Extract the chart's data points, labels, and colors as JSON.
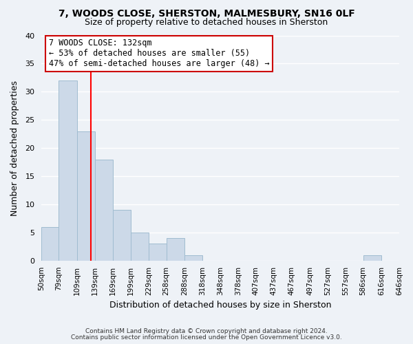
{
  "title": "7, WOODS CLOSE, SHERSTON, MALMESBURY, SN16 0LF",
  "subtitle": "Size of property relative to detached houses in Sherston",
  "xlabel": "Distribution of detached houses by size in Sherston",
  "ylabel": "Number of detached properties",
  "bar_color": "#ccd9e8",
  "bar_edge_color": "#a0bcd0",
  "red_line_x": 132,
  "annotation_title": "7 WOODS CLOSE: 132sqm",
  "annotation_line1": "← 53% of detached houses are smaller (55)",
  "annotation_line2": "47% of semi-detached houses are larger (48) →",
  "bin_edges": [
    50,
    79,
    109,
    139,
    169,
    199,
    229,
    258,
    288,
    318,
    348,
    378,
    407,
    437,
    467,
    497,
    527,
    557,
    586,
    616,
    646
  ],
  "bin_counts": [
    6,
    32,
    23,
    18,
    9,
    5,
    3,
    4,
    1,
    0,
    0,
    0,
    0,
    0,
    0,
    0,
    0,
    0,
    1,
    0
  ],
  "ylim": [
    0,
    40
  ],
  "yticks": [
    0,
    5,
    10,
    15,
    20,
    25,
    30,
    35,
    40
  ],
  "footnote1": "Contains HM Land Registry data © Crown copyright and database right 2024.",
  "footnote2": "Contains public sector information licensed under the Open Government Licence v3.0.",
  "background_color": "#eef2f7",
  "grid_color": "#ffffff",
  "title_fontsize": 10,
  "subtitle_fontsize": 9,
  "annotation_box_color": "#cc0000",
  "annotation_fontsize": 8.5
}
